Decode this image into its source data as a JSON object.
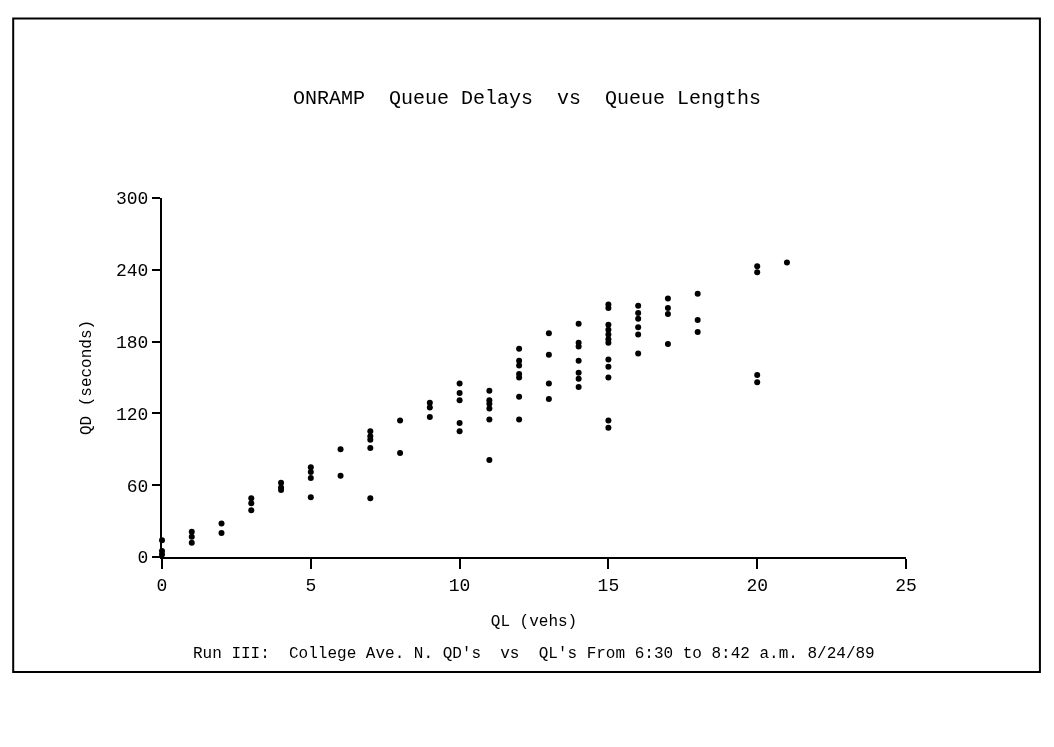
{
  "chart_data": {
    "type": "scatter",
    "title": "ONRAMP  Queue Delays  vs  Queue Lengths",
    "xlabel": "QL (vehs)",
    "ylabel": "QD (seconds)",
    "annotations": [
      "Run III:  College Ave. N. QD's  vs  QL's From 6:30 to 8:42 a.m. 8/24/89"
    ],
    "x": [
      0,
      0,
      0,
      1,
      1,
      1,
      2,
      2,
      3,
      3,
      3,
      4,
      4,
      4,
      5,
      5,
      5,
      5,
      6,
      6,
      7,
      7,
      7,
      7,
      7,
      8,
      8,
      9,
      9,
      9,
      10,
      10,
      10,
      10,
      10,
      11,
      11,
      11,
      11,
      11,
      11,
      12,
      12,
      12,
      12,
      12,
      12,
      12,
      13,
      13,
      13,
      13,
      14,
      14,
      14,
      14,
      14,
      14,
      14,
      15,
      15,
      15,
      15,
      15,
      15,
      15,
      15,
      15,
      15,
      15,
      15,
      16,
      16,
      16,
      16,
      16,
      16,
      17,
      17,
      17,
      17,
      18,
      18,
      18,
      20,
      20,
      20,
      20,
      21
    ],
    "values": [
      14,
      5,
      2,
      21,
      17,
      12,
      28,
      20,
      49,
      45,
      39,
      62,
      58,
      56,
      75,
      71,
      66,
      50,
      90,
      68,
      105,
      101,
      98,
      91,
      49,
      114,
      87,
      129,
      125,
      117,
      145,
      137,
      131,
      112,
      105,
      139,
      131,
      128,
      124,
      115,
      81,
      174,
      164,
      160,
      153,
      150,
      134,
      115,
      187,
      169,
      145,
      132,
      195,
      179,
      176,
      164,
      154,
      149,
      142,
      211,
      208,
      194,
      190,
      186,
      182,
      179,
      165,
      159,
      150,
      114,
      108,
      210,
      204,
      199,
      192,
      186,
      170,
      216,
      208,
      203,
      178,
      220,
      198,
      188,
      243,
      238,
      152,
      146,
      246
    ],
    "color": "#000000",
    "marker": "circle",
    "xlim": [
      0,
      25
    ],
    "xticks": [
      0,
      5,
      10,
      15,
      20,
      25
    ],
    "ylim": [
      0,
      300
    ],
    "yticks": [
      0,
      60,
      120,
      180,
      240,
      300
    ]
  }
}
